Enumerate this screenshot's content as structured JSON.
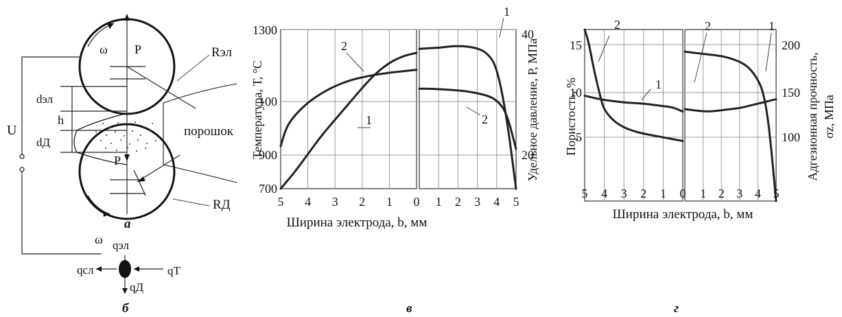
{
  "schematic": {
    "omega": "ω",
    "p": "P",
    "r_el": "Rэл",
    "r_d": "RД",
    "d_el": "dэл",
    "d_d": "dД",
    "h": "h",
    "u": "U",
    "powder": "порошок",
    "label_a": "а"
  },
  "balance": {
    "q_el": "qэл",
    "q_sl": "qсл",
    "q_t": "qТ",
    "q_d": "qД",
    "label_b": "б"
  },
  "panel_v": {
    "caption": "в",
    "ylabel_left": "Температура, Т, °С",
    "ylabel_right": "Удельное давление, Р, МПа",
    "xlabel": "Ширина электрода, b, мм",
    "left_x_ticks": [
      "5",
      "4",
      "3",
      "2",
      "1",
      "0"
    ],
    "right_x_ticks": [
      "1",
      "2",
      "3",
      "4",
      "5"
    ],
    "left_y_ticks": [
      "1300",
      "100",
      "900",
      "700"
    ],
    "right_y_ticks": [
      "40",
      "20"
    ],
    "curve_labels": [
      "2",
      "1",
      "1",
      "2"
    ]
  },
  "panel_g": {
    "caption": "г",
    "ylabel_left": "Пористость, %",
    "ylabel_right_1": "Адгезионная прочность,",
    "ylabel_right_2": "σz, МПа",
    "xlabel": "Ширина электрода, b, мм",
    "left_x_ticks": [
      "5",
      "4",
      "3",
      "2",
      "1",
      "0"
    ],
    "right_x_ticks": [
      "1",
      "2",
      "3",
      "4",
      "5"
    ],
    "left_y_ticks": [
      "15",
      "10",
      "5"
    ],
    "right_y_ticks": [
      "200",
      "150",
      "100"
    ],
    "curve_labels": [
      "2",
      "1",
      "2",
      "1"
    ]
  },
  "chart_data": [
    {
      "type": "line",
      "name": "в, left half",
      "xlabel": "Ширина электрода, b, мм",
      "ylabel": "Температура, Т, °С",
      "xlim": [
        5,
        0
      ],
      "ylim": [
        700,
        1300
      ],
      "series": [
        {
          "name": "1",
          "x": [
            5,
            4.5,
            4,
            3.5,
            3,
            2.5,
            2,
            1.5,
            1,
            0.5,
            0
          ],
          "y": [
            700,
            760,
            830,
            900,
            960,
            1020,
            1080,
            1135,
            1175,
            1200,
            1212
          ]
        },
        {
          "name": "2",
          "x": [
            5,
            4.8,
            4.5,
            4,
            3.5,
            3,
            2.5,
            2,
            1.5,
            1,
            0.5,
            0
          ],
          "y": [
            860,
            930,
            975,
            1025,
            1060,
            1087,
            1107,
            1120,
            1130,
            1137,
            1143,
            1148
          ]
        }
      ]
    },
    {
      "type": "line",
      "name": "в, right half",
      "xlabel": "Ширина электрода, b, мм",
      "ylabel": "Удельное давление, Р, МПа",
      "xlim": [
        0,
        5
      ],
      "ylim": [
        14,
        42
      ],
      "series": [
        {
          "name": "1",
          "x": [
            0,
            0.5,
            1,
            1.5,
            2,
            2.5,
            3,
            3.5,
            4,
            4.5,
            5
          ],
          "y": [
            38.6,
            38.7,
            38.8,
            39.0,
            39.1,
            39.0,
            38.7,
            37.9,
            35.5,
            27.0,
            14.0
          ]
        },
        {
          "name": "2",
          "x": [
            0,
            0.5,
            1,
            1.5,
            2,
            2.5,
            3,
            3.5,
            4,
            4.5,
            5
          ],
          "y": [
            31.6,
            31.6,
            31.5,
            31.4,
            31.3,
            31.1,
            30.8,
            30.4,
            29.6,
            27.5,
            21.0
          ]
        }
      ]
    },
    {
      "type": "line",
      "name": "г, left half",
      "xlabel": "Ширина электрода, b, мм",
      "ylabel": "Пористость, %",
      "xlim": [
        5,
        0
      ],
      "ylim": [
        1,
        15
      ],
      "series": [
        {
          "name": "2",
          "x": [
            5,
            4.8,
            4.5,
            4.2,
            4,
            3.5,
            3,
            2.5,
            2,
            1.5,
            1,
            0.5,
            0
          ],
          "y": [
            15,
            14,
            11.5,
            9.5,
            8.4,
            7.5,
            7.0,
            6.7,
            6.5,
            6.35,
            6.2,
            6.05,
            5.9
          ]
        },
        {
          "name": "1",
          "x": [
            5,
            4.5,
            4,
            3.5,
            3,
            2.5,
            2,
            1.5,
            1,
            0.5,
            0
          ],
          "y": [
            9.6,
            9.4,
            9.25,
            9.15,
            9.05,
            9.0,
            8.95,
            8.85,
            8.75,
            8.65,
            8.3
          ]
        }
      ]
    },
    {
      "type": "line",
      "name": "г, right half",
      "xlabel": "Ширина электрода, b, мм",
      "ylabel": "Адгезионная прочность, σz, МПа",
      "xlim": [
        0,
        5
      ],
      "ylim": [
        60,
        215
      ],
      "series": [
        {
          "name": "2",
          "x": [
            0,
            0.5,
            1,
            1.5,
            2,
            2.5,
            3,
            3.5,
            4,
            4.3,
            4.6,
            5
          ],
          "y": [
            195,
            194,
            193,
            192,
            191,
            189,
            186,
            181,
            170,
            158,
            130,
            60
          ]
        },
        {
          "name": "1",
          "x": [
            0,
            0.5,
            1,
            1.5,
            2,
            2.5,
            3,
            3.5,
            4,
            4.5,
            5
          ],
          "y": [
            143,
            142,
            141,
            141,
            142,
            143,
            144,
            146,
            148,
            150,
            152
          ]
        }
      ]
    }
  ]
}
